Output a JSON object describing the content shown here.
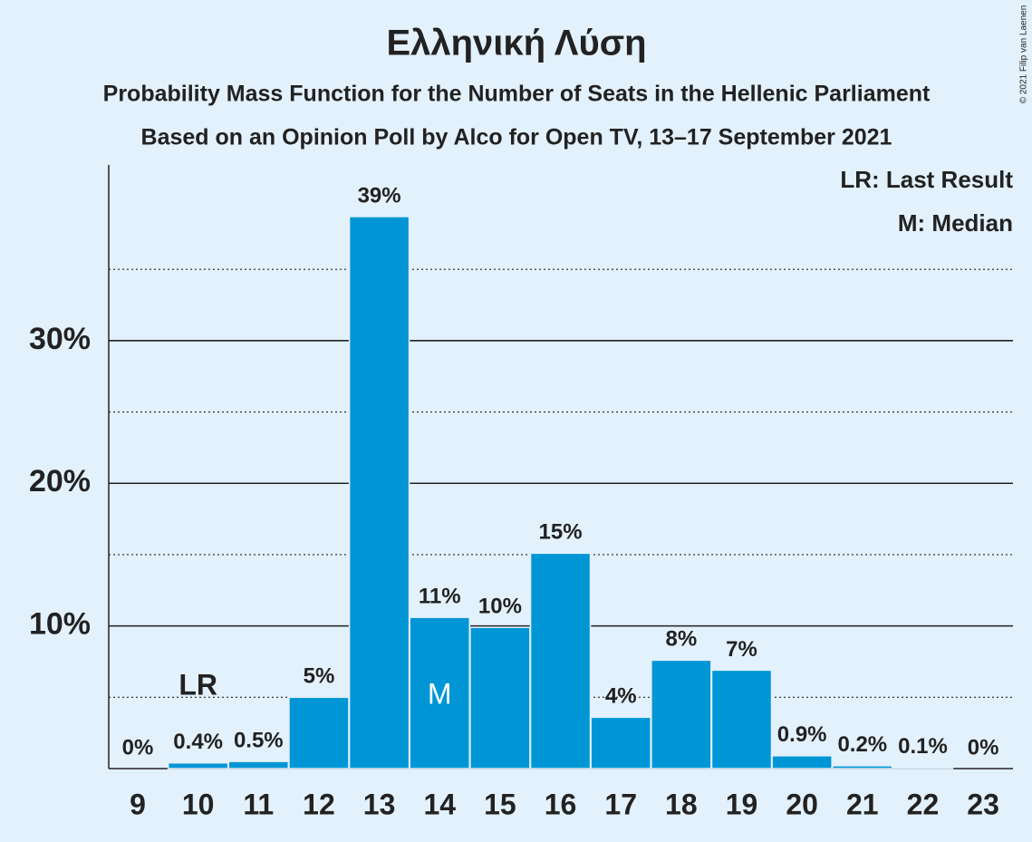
{
  "chart_data": {
    "type": "bar",
    "title": "Ελληνική Λύση",
    "subtitle": "Probability Mass Function for the Number of Seats in the Hellenic Parliament",
    "subtitle2": "Based on an Opinion Poll by Alco for Open TV, 13–17 September 2021",
    "credit": "© 2021 Filip van Laenen",
    "categories": [
      "9",
      "10",
      "11",
      "12",
      "13",
      "14",
      "15",
      "16",
      "17",
      "18",
      "19",
      "20",
      "21",
      "22",
      "23"
    ],
    "values": [
      0,
      0.4,
      0.5,
      5,
      38.7,
      10.6,
      9.9,
      15.1,
      3.6,
      7.6,
      6.9,
      0.9,
      0.2,
      0.1,
      0
    ],
    "value_labels": [
      "0%",
      "0.4%",
      "0.5%",
      "5%",
      "39%",
      "11%",
      "10%",
      "15%",
      "4%",
      "8%",
      "7%",
      "0.9%",
      "0.2%",
      "0.1%",
      "0%"
    ],
    "color": "#0096d6",
    "ylim": [
      0,
      42
    ],
    "yticks": [
      {
        "value": 10,
        "label": "10%"
      },
      {
        "value": 20,
        "label": "20%"
      },
      {
        "value": 30,
        "label": "30%"
      }
    ],
    "minor_ticks": [
      5,
      15,
      25,
      35
    ],
    "grid": true,
    "annotations": [
      {
        "text": "LR",
        "category": "10"
      },
      {
        "text": "M",
        "category": "14"
      }
    ],
    "legend": [
      "LR: Last Result",
      "M: Median"
    ]
  }
}
